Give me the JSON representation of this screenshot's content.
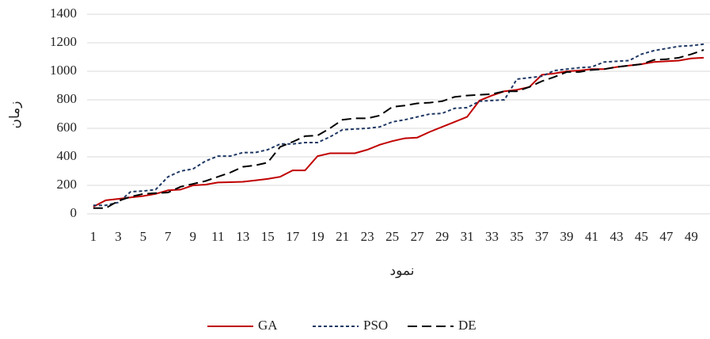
{
  "chart_data": {
    "type": "line",
    "x_label": "نمود",
    "y_label": "زمان",
    "categories": [
      "1",
      null,
      "3",
      null,
      "5",
      null,
      "7",
      null,
      "9",
      null,
      "11",
      null,
      "13",
      null,
      "15",
      null,
      "17",
      null,
      "19",
      null,
      "21",
      null,
      "23",
      null,
      "25",
      null,
      "27",
      null,
      "29",
      null,
      "31",
      null,
      "33",
      null,
      "35",
      null,
      "37",
      null,
      "39",
      null,
      "41",
      null,
      "43",
      null,
      "45",
      null,
      "47",
      null,
      "49",
      null
    ],
    "series": [
      {
        "name": "GA",
        "color": "#c00000",
        "dash": "solid",
        "values": [
          50,
          95,
          105,
          115,
          125,
          140,
          165,
          170,
          200,
          205,
          220,
          222,
          225,
          235,
          245,
          260,
          305,
          305,
          405,
          425,
          425,
          425,
          450,
          485,
          510,
          530,
          535,
          575,
          610,
          645,
          680,
          795,
          830,
          860,
          870,
          890,
          975,
          985,
          1000,
          1005,
          1015,
          1015,
          1030,
          1040,
          1050,
          1065,
          1070,
          1075,
          1090,
          1095
        ]
      },
      {
        "name": "PSO",
        "color": "#1f3864",
        "dash": "short",
        "values": [
          60,
          60,
          80,
          155,
          160,
          170,
          260,
          300,
          315,
          370,
          405,
          405,
          430,
          430,
          450,
          490,
          490,
          500,
          500,
          540,
          590,
          595,
          600,
          610,
          645,
          660,
          680,
          700,
          705,
          740,
          745,
          790,
          795,
          800,
          945,
          955,
          965,
          1005,
          1015,
          1025,
          1030,
          1065,
          1070,
          1075,
          1120,
          1145,
          1160,
          1175,
          1180,
          1190
        ]
      },
      {
        "name": "DE",
        "color": "#000000",
        "dash": "long",
        "values": [
          40,
          40,
          90,
          120,
          140,
          145,
          150,
          190,
          210,
          230,
          260,
          290,
          330,
          340,
          360,
          470,
          505,
          545,
          550,
          600,
          660,
          670,
          670,
          690,
          750,
          760,
          775,
          780,
          790,
          820,
          830,
          835,
          840,
          860,
          860,
          890,
          930,
          960,
          995,
          995,
          1010,
          1015,
          1030,
          1040,
          1050,
          1080,
          1085,
          1095,
          1120,
          1150
        ]
      }
    ],
    "ylim": [
      0,
      1400
    ],
    "yticks": [
      0,
      200,
      400,
      600,
      800,
      1000,
      1200,
      1400
    ],
    "grid": true,
    "legend": "bottom"
  }
}
